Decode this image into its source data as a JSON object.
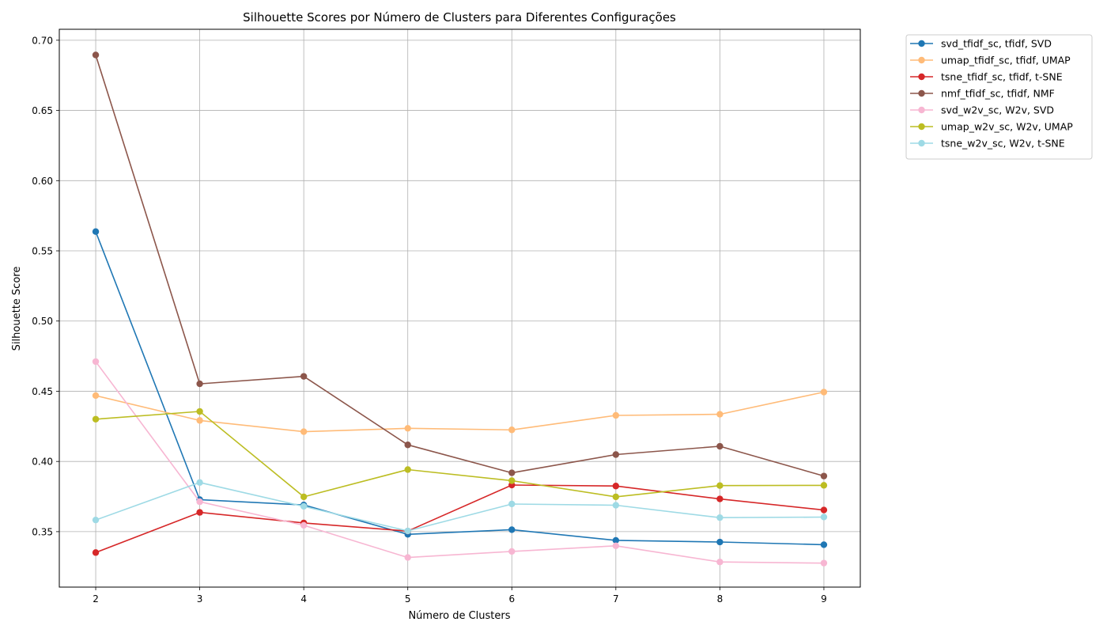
{
  "chart_data": {
    "type": "line",
    "title": "Silhouette Scores por Número de Clusters para Diferentes Configurações",
    "xlabel": "Número de Clusters",
    "ylabel": "Silhouette Score",
    "x": [
      2,
      3,
      4,
      5,
      6,
      7,
      8,
      9
    ],
    "xlim": [
      1.65,
      9.35
    ],
    "ylim": [
      0.3105,
      0.7078
    ],
    "yticks": [
      0.35,
      0.4,
      0.45,
      0.5,
      0.55,
      0.6,
      0.65,
      0.7
    ],
    "ytick_labels": [
      "0.35",
      "0.40",
      "0.45",
      "0.50",
      "0.55",
      "0.60",
      "0.65",
      "0.70"
    ],
    "xtick_labels": [
      "2",
      "3",
      "4",
      "5",
      "6",
      "7",
      "8",
      "9"
    ],
    "grid": true,
    "legend_position": "outside-top-right",
    "marker": "circle",
    "series": [
      {
        "name": "svd_tfidf_sc, tfidf, SVD",
        "color": "#1f77b4",
        "values": [
          0.5637,
          0.3728,
          0.369,
          0.3481,
          0.3514,
          0.3438,
          0.3426,
          0.3407
        ]
      },
      {
        "name": "umap_tfidf_sc, tfidf, UMAP",
        "color": "#ffbb78",
        "values": [
          0.4469,
          0.4292,
          0.4212,
          0.4236,
          0.4225,
          0.4328,
          0.4336,
          0.4494
        ]
      },
      {
        "name": "tsne_tfidf_sc, tfidf, t-SNE",
        "color": "#d62728",
        "values": [
          0.3351,
          0.3637,
          0.3562,
          0.3504,
          0.3832,
          0.3825,
          0.3733,
          0.3654
        ]
      },
      {
        "name": "nmf_tfidf_sc, tfidf, NMF",
        "color": "#8c564b",
        "values": [
          0.6895,
          0.4553,
          0.4606,
          0.4118,
          0.3919,
          0.4049,
          0.4108,
          0.3896
        ]
      },
      {
        "name": "svd_w2v_sc, W2v, SVD",
        "color": "#f7b6d2",
        "values": [
          0.4711,
          0.3713,
          0.3545,
          0.3316,
          0.3359,
          0.3399,
          0.3284,
          0.3276
        ]
      },
      {
        "name": "umap_w2v_sc, W2v, UMAP",
        "color": "#bcbd22",
        "values": [
          0.4301,
          0.4356,
          0.3748,
          0.3942,
          0.3863,
          0.3748,
          0.3828,
          0.383
        ]
      },
      {
        "name": "tsne_w2v_sc, W2v, t-SNE",
        "color": "#9edae5",
        "values": [
          0.3583,
          0.385,
          0.368,
          0.3505,
          0.3697,
          0.3688,
          0.36,
          0.3604
        ]
      }
    ]
  }
}
